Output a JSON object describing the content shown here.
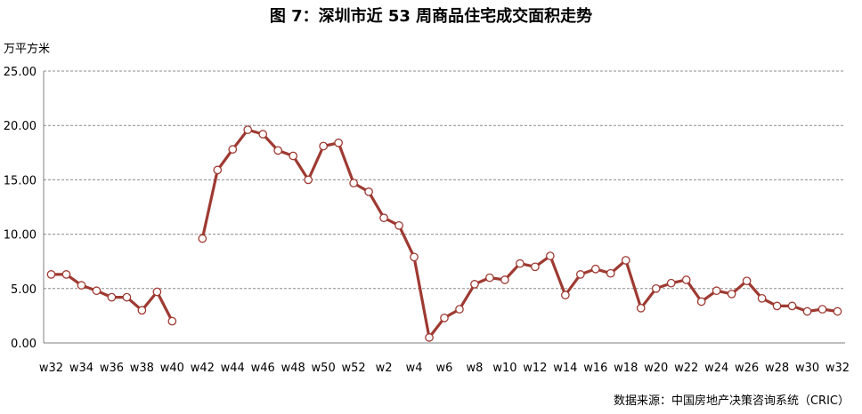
{
  "chart_data": {
    "type": "line",
    "title": "图 7：深圳市近 53 周商品住宅成交面积走势",
    "ylabel": "万平方米",
    "xlabel": "",
    "ylim": [
      0,
      25
    ],
    "yticks": [
      "0.00",
      "5.00",
      "10.00",
      "15.00",
      "20.00",
      "25.00"
    ],
    "grid": "horizontal-dashed",
    "x_tick_labels": [
      "w32",
      "w34",
      "w36",
      "w38",
      "w40",
      "w42",
      "w44",
      "w46",
      "w48",
      "w50",
      "w52",
      "w2",
      "w4",
      "w6",
      "w8",
      "w10",
      "w12",
      "w14",
      "w16",
      "w18",
      "w20",
      "w22",
      "w24",
      "w26",
      "w28",
      "w30",
      "w32"
    ],
    "categories": [
      "w32",
      "w33",
      "w34",
      "w35",
      "w36",
      "w37",
      "w38",
      "w39",
      "w40",
      "w41",
      "w42",
      "w43",
      "w44",
      "w45",
      "w46",
      "w47",
      "w48",
      "w49",
      "w50",
      "w51",
      "w52",
      "w1",
      "w2",
      "w3",
      "w4",
      "w5",
      "w6",
      "w7",
      "w8",
      "w9",
      "w10",
      "w11",
      "w12",
      "w13",
      "w14",
      "w15",
      "w16",
      "w17",
      "w18",
      "w19",
      "w20",
      "w21",
      "w22",
      "w23",
      "w24",
      "w25",
      "w26",
      "w27",
      "w28",
      "w29",
      "w30",
      "w31",
      "w32"
    ],
    "series": [
      {
        "color": "#9e3a32",
        "values": [
          6.3,
          6.3,
          5.3,
          4.8,
          4.2,
          4.2,
          3.0,
          4.7,
          2.0,
          null,
          9.6,
          15.9,
          17.8,
          19.6,
          19.2,
          17.7,
          17.2,
          15.0,
          18.1,
          18.4,
          14.7,
          13.9,
          11.5,
          10.8,
          7.9,
          0.5,
          2.3,
          3.1,
          5.4,
          6.0,
          5.8,
          7.3,
          7.0,
          8.0,
          4.4,
          6.3,
          6.8,
          6.4,
          7.6,
          3.2,
          5.0,
          5.5,
          5.8,
          3.8,
          4.8,
          4.5,
          5.7,
          4.1,
          3.4,
          3.4,
          2.9,
          3.1,
          2.9
        ]
      }
    ]
  },
  "source": "数据来源：中国房地产决策咨询系统（CRIC）"
}
